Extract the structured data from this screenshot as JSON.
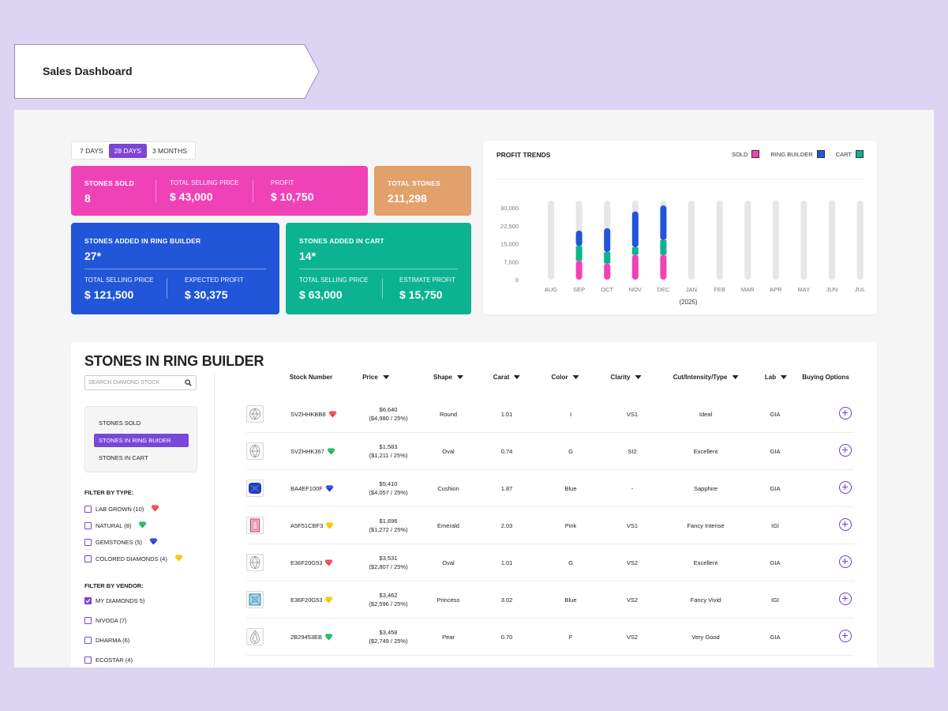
{
  "page": {
    "title": "Sales Dashboard"
  },
  "range": {
    "options": [
      "7 DAYS",
      "28 DAYS",
      "3 MONTHS"
    ],
    "selected": "28 DAYS"
  },
  "cards": {
    "sold": {
      "label": "STONES SOLD",
      "value": "8",
      "selling_label": "TOTAL SELLING PRICE",
      "selling_value": "$ 43,000",
      "profit_label": "PROFIT",
      "profit_value": "$ 10,750"
    },
    "total": {
      "label": "TOTAL STONES",
      "value": "211,298"
    },
    "ring": {
      "label": "STONES ADDED IN RING BUILDER",
      "value": "27*",
      "sp_label": "TOTAL SELLING PRICE",
      "sp_value": "$ 121,500",
      "ep_label": "EXPECTED PROFIT",
      "ep_value": "$ 30,375"
    },
    "cart": {
      "label": "STONES ADDED IN CART",
      "value": "14*",
      "sp_label": "TOTAL SELLING PRICE",
      "sp_value": "$ 63,000",
      "ep_label": "ESTIMATE PROFIT",
      "ep_value": "$ 15,750"
    }
  },
  "colors": {
    "sold": "#f042b7",
    "ring_builder": "#2156d9",
    "cart": "#0bb391",
    "accent": "#7b47d6",
    "track": "#e6e6e6"
  },
  "chart_data": {
    "type": "bar",
    "stacked": true,
    "title": "PROFIT TRENDS",
    "categories": [
      "AUG",
      "SEP",
      "OCT",
      "NOV",
      "DEC",
      "JAN",
      "FEB",
      "MAR",
      "APR",
      "MAY",
      "JUN",
      "JUL"
    ],
    "xlabel": "(2025)",
    "ylabel": "",
    "yticks": [
      "30,000",
      "22,500",
      "15,000",
      "7,500",
      "0"
    ],
    "ylim": [
      0,
      33000
    ],
    "legend_position": "top-right",
    "series": [
      {
        "name": "SOLD",
        "values": [
          0,
          8000,
          6800,
          10500,
          10500,
          0,
          0,
          0,
          0,
          0,
          0,
          0
        ]
      },
      {
        "name": "CART",
        "values": [
          0,
          6000,
          4700,
          3000,
          6000,
          0,
          0,
          0,
          0,
          0,
          0,
          0
        ]
      },
      {
        "name": "RING BUILDER",
        "values": [
          0,
          6500,
          10000,
          15000,
          14500,
          0,
          0,
          0,
          0,
          0,
          0,
          0
        ]
      }
    ]
  },
  "table": {
    "title": "STONES IN RING BUILDER",
    "search_placeholder": "SEARCH DIAMOND STOCK",
    "views": [
      "STONES SOLD",
      "STONES IN RING BUIDER",
      "STONES IN CART"
    ],
    "active_view": 1,
    "filter_type_title": "FILTER BY TYPE:",
    "types": [
      {
        "label": "LAB GROWN (10)",
        "gem": "#ef4444"
      },
      {
        "label": "NATURAL (8)",
        "gem": "#16b85a"
      },
      {
        "label": "GEMSTONES (5)",
        "gem": "#1d3fcf"
      },
      {
        "label": "COLORED DIAMONDS (4)",
        "gem": "#f5c400"
      }
    ],
    "filter_vendor_title": "FILTER BY VENDOR:",
    "vendors": [
      {
        "label": "MY DIAMONDS 5)",
        "checked": true
      },
      {
        "label": "NIVODA (7)",
        "checked": false
      },
      {
        "label": "DHARMA (6)",
        "checked": false
      },
      {
        "label": "ECOSTAR (4)",
        "checked": false
      }
    ],
    "columns": [
      "Stock Number",
      "Price",
      "Shape",
      "Carat",
      "Color",
      "Clarity",
      "Cut/Intensity/Type",
      "Lab",
      "Buying Options"
    ],
    "rows": [
      {
        "stock": "SVZHHKBB8",
        "gem": "#ef4444",
        "thumb": "diamond-round",
        "price": "$6,640",
        "price_sub": "($4,980 / 25%)",
        "shape": "Round",
        "carat": "1.01",
        "color": "I",
        "clarity": "VS1",
        "cut": "Ideal",
        "lab": "GIA"
      },
      {
        "stock": "SVZHHK367",
        "gem": "#16b85a",
        "thumb": "diamond-oval",
        "price": "$1,583",
        "price_sub": "($1,211 / 25%)",
        "shape": "Oval",
        "carat": "0.74",
        "color": "G",
        "clarity": "SI2",
        "cut": "Excellent",
        "lab": "GIA"
      },
      {
        "stock": "BA4EF100F",
        "gem": "#1d3fcf",
        "thumb": "sapphire-cushion",
        "price": "$5,410",
        "price_sub": "($4,057 / 25%)",
        "shape": "Cushion",
        "carat": "1.87",
        "color": "Blue",
        "clarity": "-",
        "cut": "Sapphire",
        "lab": "GIA"
      },
      {
        "stock": "A5F51CBF3",
        "gem": "#f5c400",
        "thumb": "pink-emerald",
        "price": "$1,696",
        "price_sub": "($1,272 / 25%)",
        "shape": "Emerald",
        "carat": "2.03",
        "color": "Pink",
        "clarity": "VS1",
        "cut": "Fancy Intense",
        "lab": "IGI"
      },
      {
        "stock": "E36F20G53",
        "gem": "#ef4444",
        "thumb": "diamond-oval",
        "price": "$3,531",
        "price_sub": "($2,807 / 25%)",
        "shape": "Oval",
        "carat": "1.01",
        "color": "G",
        "clarity": "VS2",
        "cut": "Excellent",
        "lab": "GIA"
      },
      {
        "stock": "E36F20G53",
        "gem": "#f5c400",
        "thumb": "blue-princess",
        "price": "$3,462",
        "price_sub": "($2,596 / 25%)",
        "shape": "Princess",
        "carat": "3.02",
        "color": "Blue",
        "clarity": "VS2",
        "cut": "Fancy Vivid",
        "lab": "IGI"
      },
      {
        "stock": "2B29453EB",
        "gem": "#16b85a",
        "thumb": "diamond-pear",
        "price": "$3,458",
        "price_sub": "($2,749 / 25%)",
        "shape": "Pear",
        "carat": "0.70",
        "color": "F",
        "clarity": "VS2",
        "cut": "Very Good",
        "lab": "GIA"
      }
    ]
  }
}
